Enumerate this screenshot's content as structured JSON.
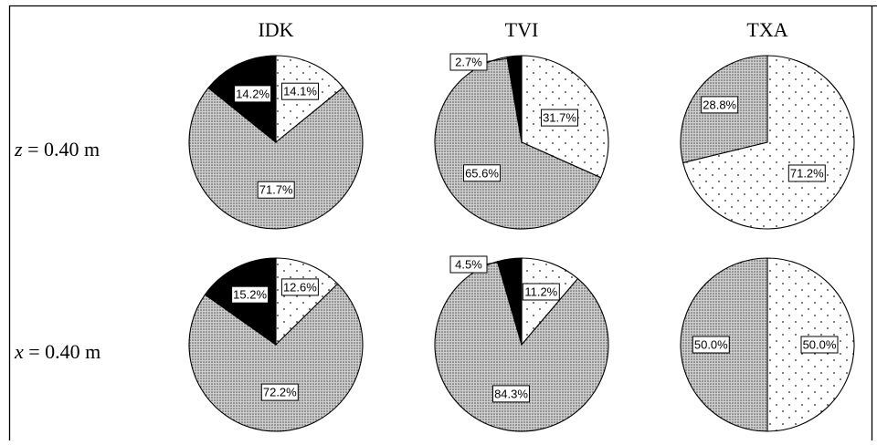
{
  "colors": {
    "line": "#000000",
    "background": "#ffffff",
    "slice_dark": "#000000"
  },
  "chart_data": {
    "type": "pie",
    "columns": [
      "IDK",
      "TVI",
      "TXA"
    ],
    "rows": [
      {
        "label_var": "z",
        "label_rest": " = 0.40 m"
      },
      {
        "label_var": "x",
        "label_rest": " = 0.40 m"
      }
    ],
    "pies": [
      {
        "row": 0,
        "col": 0,
        "slices": [
          {
            "value": 14.1,
            "label": "14.1%",
            "pattern": "sparse-dots"
          },
          {
            "value": 71.7,
            "label": "71.7%",
            "pattern": "dense-dots"
          },
          {
            "value": 14.2,
            "label": "14.2%",
            "pattern": "solid-black"
          }
        ]
      },
      {
        "row": 0,
        "col": 1,
        "slices": [
          {
            "value": 31.7,
            "label": "31.7%",
            "pattern": "sparse-dots"
          },
          {
            "value": 65.6,
            "label": "65.6%",
            "pattern": "dense-dots"
          },
          {
            "value": 2.7,
            "label": "2.7%",
            "pattern": "solid-black"
          }
        ]
      },
      {
        "row": 0,
        "col": 2,
        "slices": [
          {
            "value": 71.2,
            "label": "71.2%",
            "pattern": "sparse-dots"
          },
          {
            "value": 28.8,
            "label": "28.8%",
            "pattern": "dense-dots"
          }
        ]
      },
      {
        "row": 1,
        "col": 0,
        "slices": [
          {
            "value": 12.6,
            "label": "12.6%",
            "pattern": "sparse-dots"
          },
          {
            "value": 72.2,
            "label": "72.2%",
            "pattern": "dense-dots"
          },
          {
            "value": 15.2,
            "label": "15.2%",
            "pattern": "solid-black"
          }
        ]
      },
      {
        "row": 1,
        "col": 1,
        "slices": [
          {
            "value": 11.2,
            "label": "11.2%",
            "pattern": "sparse-dots"
          },
          {
            "value": 84.3,
            "label": "84.3%",
            "pattern": "dense-dots"
          },
          {
            "value": 4.5,
            "label": "4.5%",
            "pattern": "solid-black"
          }
        ]
      },
      {
        "row": 1,
        "col": 2,
        "slices": [
          {
            "value": 50.0,
            "label": "50.0%",
            "pattern": "sparse-dots"
          },
          {
            "value": 50.0,
            "label": "50.0%",
            "pattern": "dense-dots"
          }
        ]
      }
    ]
  }
}
